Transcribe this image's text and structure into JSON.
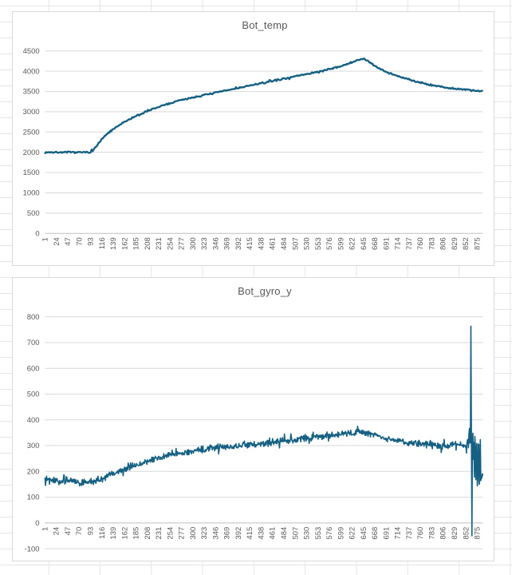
{
  "page": {
    "background": "excel-worksheet-grid"
  },
  "chart_data": [
    {
      "type": "line",
      "title": "Bot_temp",
      "xlabel": "",
      "ylabel": "",
      "xlim": [
        1,
        886
      ],
      "ylim": [
        0,
        4500
      ],
      "y_tick_step": 500,
      "y_tick_labels": [
        "0",
        "500",
        "1000",
        "1500",
        "2000",
        "2500",
        "3000",
        "3500",
        "4000",
        "4500"
      ],
      "x_tick_labels": [
        "1",
        "24",
        "47",
        "70",
        "93",
        "116",
        "139",
        "162",
        "185",
        "208",
        "231",
        "254",
        "277",
        "300",
        "323",
        "346",
        "369",
        "392",
        "415",
        "438",
        "461",
        "484",
        "507",
        "530",
        "553",
        "576",
        "599",
        "622",
        "645",
        "668",
        "691",
        "714",
        "737",
        "760",
        "783",
        "806",
        "829",
        "852",
        "875"
      ],
      "grid": true,
      "legend": false,
      "line_color": "#156082",
      "gridline_color": "#d9d9d9",
      "axis_color": "#bfbfbf",
      "tick_color": "#595959",
      "noise_amplitude": 24,
      "sample_step": 2,
      "line_width": 2.4,
      "series": [
        {
          "name": "Bot_temp",
          "trend_points": [
            [
              1,
              2000
            ],
            [
              30,
              1998
            ],
            [
              60,
              2000
            ],
            [
              90,
              2000
            ],
            [
              97,
              2035
            ],
            [
              105,
              2150
            ],
            [
              115,
              2320
            ],
            [
              131,
              2500
            ],
            [
              150,
              2660
            ],
            [
              175,
              2840
            ],
            [
              205,
              3000
            ],
            [
              240,
              3160
            ],
            [
              280,
              3300
            ],
            [
              320,
              3405
            ],
            [
              360,
              3505
            ],
            [
              400,
              3605
            ],
            [
              440,
              3705
            ],
            [
              480,
              3805
            ],
            [
              520,
              3905
            ],
            [
              560,
              4000
            ],
            [
              590,
              4090
            ],
            [
              615,
              4185
            ],
            [
              635,
              4280
            ],
            [
              645,
              4310
            ],
            [
              652,
              4260
            ],
            [
              660,
              4190
            ],
            [
              670,
              4110
            ],
            [
              685,
              4020
            ],
            [
              700,
              3940
            ],
            [
              720,
              3855
            ],
            [
              740,
              3785
            ],
            [
              760,
              3720
            ],
            [
              780,
              3665
            ],
            [
              800,
              3620
            ],
            [
              820,
              3580
            ],
            [
              840,
              3550
            ],
            [
              860,
              3530
            ],
            [
              875,
              3515
            ],
            [
              886,
              3505
            ]
          ]
        }
      ]
    },
    {
      "type": "line",
      "title": "Bot_gyro_y",
      "xlabel": "",
      "ylabel": "",
      "xlim": [
        1,
        886
      ],
      "ylim": [
        -100,
        800
      ],
      "y_tick_step": 100,
      "y_tick_labels": [
        "-100",
        "0",
        "100",
        "200",
        "300",
        "400",
        "500",
        "600",
        "700",
        "800"
      ],
      "x_tick_labels": [
        "1",
        "24",
        "47",
        "70",
        "93",
        "116",
        "139",
        "162",
        "185",
        "208",
        "231",
        "254",
        "277",
        "300",
        "323",
        "346",
        "369",
        "392",
        "415",
        "438",
        "461",
        "484",
        "507",
        "530",
        "553",
        "576",
        "599",
        "622",
        "645",
        "668",
        "691",
        "714",
        "737",
        "760",
        "783",
        "806",
        "829",
        "852",
        "875"
      ],
      "grid": true,
      "legend": false,
      "line_color": "#156082",
      "gridline_color": "#d9d9d9",
      "axis_color": "#bfbfbf",
      "tick_color": "#595959",
      "noise_amplitude": 15,
      "sample_step": 1,
      "line_width": 1.6,
      "series": [
        {
          "name": "Bot_gyro_y",
          "trend_points": [
            [
              1,
              175
            ],
            [
              15,
              168
            ],
            [
              30,
              160
            ],
            [
              45,
              165
            ],
            [
              60,
              162
            ],
            [
              75,
              155
            ],
            [
              90,
              160
            ],
            [
              105,
              162
            ],
            [
              120,
              175
            ],
            [
              135,
              190
            ],
            [
              150,
              200
            ],
            [
              165,
              212
            ],
            [
              180,
              222
            ],
            [
              195,
              230
            ],
            [
              210,
              238
            ],
            [
              225,
              248
            ],
            [
              240,
              258
            ],
            [
              255,
              264
            ],
            [
              270,
              270
            ],
            [
              285,
              274
            ],
            [
              300,
              278
            ],
            [
              315,
              284
            ],
            [
              330,
              290
            ],
            [
              345,
              294
            ],
            [
              360,
              295
            ],
            [
              375,
              297
            ],
            [
              390,
              300
            ],
            [
              405,
              304
            ],
            [
              420,
              302
            ],
            [
              435,
              305
            ],
            [
              450,
              310
            ],
            [
              465,
              314
            ],
            [
              480,
              318
            ],
            [
              495,
              322
            ],
            [
              510,
              326
            ],
            [
              525,
              330
            ],
            [
              540,
              333
            ],
            [
              555,
              335
            ],
            [
              570,
              336
            ],
            [
              585,
              340
            ],
            [
              600,
              344
            ],
            [
              615,
              348
            ],
            [
              630,
              352
            ],
            [
              645,
              350
            ],
            [
              655,
              347
            ],
            [
              665,
              342
            ],
            [
              675,
              336
            ],
            [
              690,
              328
            ],
            [
              705,
              324
            ],
            [
              720,
              316
            ],
            [
              735,
              312
            ],
            [
              750,
              310
            ],
            [
              765,
              308
            ],
            [
              780,
              305
            ],
            [
              795,
              302
            ],
            [
              810,
              300
            ],
            [
              825,
              302
            ],
            [
              840,
              305
            ],
            [
              850,
              302
            ],
            [
              853,
              280
            ],
            [
              855,
              330
            ],
            [
              857,
              295
            ],
            [
              859,
              370
            ],
            [
              860,
              310
            ],
            [
              861,
              305
            ],
            [
              862,
              765
            ],
            [
              863,
              320
            ],
            [
              864,
              -45
            ],
            [
              865,
              310
            ],
            [
              866,
              340
            ],
            [
              867,
              260
            ],
            [
              868,
              310
            ],
            [
              869,
              185
            ],
            [
              870,
              330
            ],
            [
              871,
              300
            ],
            [
              872,
              150
            ],
            [
              873,
              290
            ],
            [
              874,
              320
            ],
            [
              875,
              140
            ],
            [
              876,
              170
            ],
            [
              877,
              310
            ],
            [
              878,
              300
            ],
            [
              879,
              150
            ],
            [
              880,
              185
            ],
            [
              881,
              320
            ],
            [
              882,
              160
            ],
            [
              883,
              185
            ],
            [
              884,
              175
            ],
            [
              886,
              180
            ]
          ]
        }
      ]
    }
  ]
}
